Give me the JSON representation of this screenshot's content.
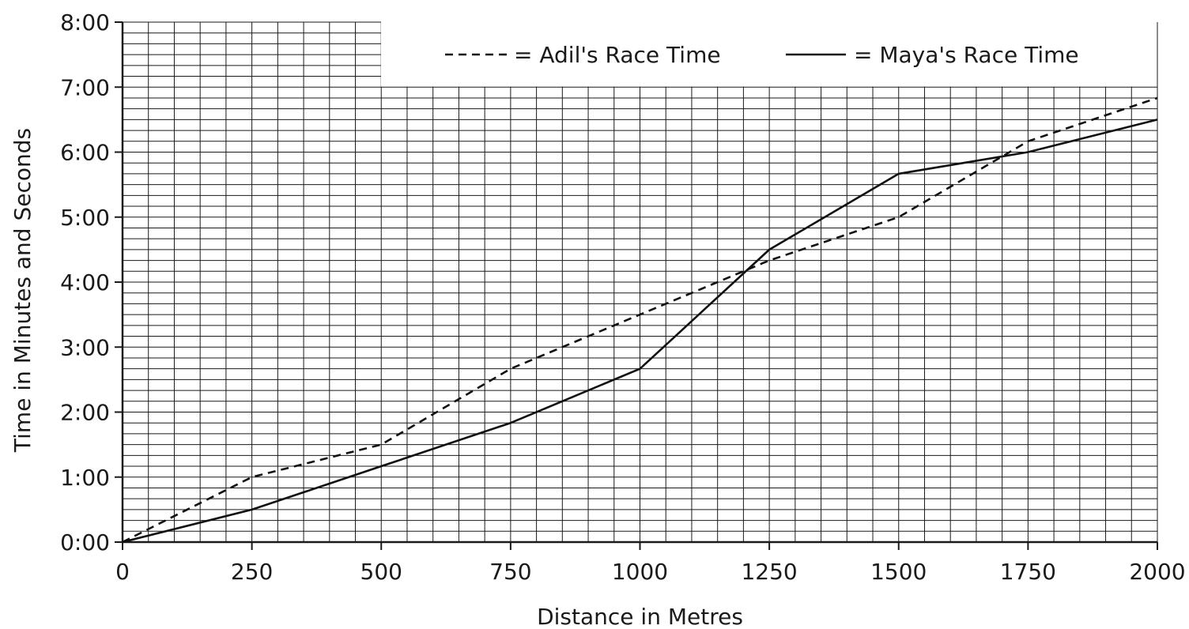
{
  "chart_data": {
    "type": "line",
    "xlabel": "Distance in Metres",
    "ylabel": "Time in Minutes and Seconds",
    "xlim": [
      0,
      2000
    ],
    "ylim": [
      0,
      480
    ],
    "y_unit": "seconds",
    "x_ticks": [
      0,
      250,
      500,
      750,
      1000,
      1250,
      1500,
      1750,
      2000
    ],
    "x_tick_labels": [
      "0",
      "250",
      "500",
      "750",
      "1000",
      "1250",
      "1500",
      "1750",
      "2000"
    ],
    "y_ticks": [
      0,
      60,
      120,
      180,
      240,
      300,
      360,
      420,
      480
    ],
    "y_tick_labels": [
      "0:00",
      "1:00",
      "2:00",
      "3:00",
      "4:00",
      "5:00",
      "6:00",
      "7:00",
      "8:00"
    ],
    "grid": true,
    "legend_position": "top",
    "series": [
      {
        "legend_label": "= Adil's Race Time",
        "style": "dashed",
        "color": "#111111",
        "x": [
          0,
          250,
          500,
          750,
          1000,
          1250,
          1500,
          1750,
          2000
        ],
        "y": [
          0,
          60,
          90,
          160,
          210,
          260,
          300,
          370,
          410
        ]
      },
      {
        "legend_label": "= Maya's Race Time",
        "style": "solid",
        "color": "#111111",
        "x": [
          0,
          250,
          500,
          750,
          1000,
          1250,
          1500,
          1750,
          2000
        ],
        "y": [
          0,
          30,
          70,
          110,
          160,
          270,
          340,
          360,
          390
        ]
      }
    ]
  }
}
